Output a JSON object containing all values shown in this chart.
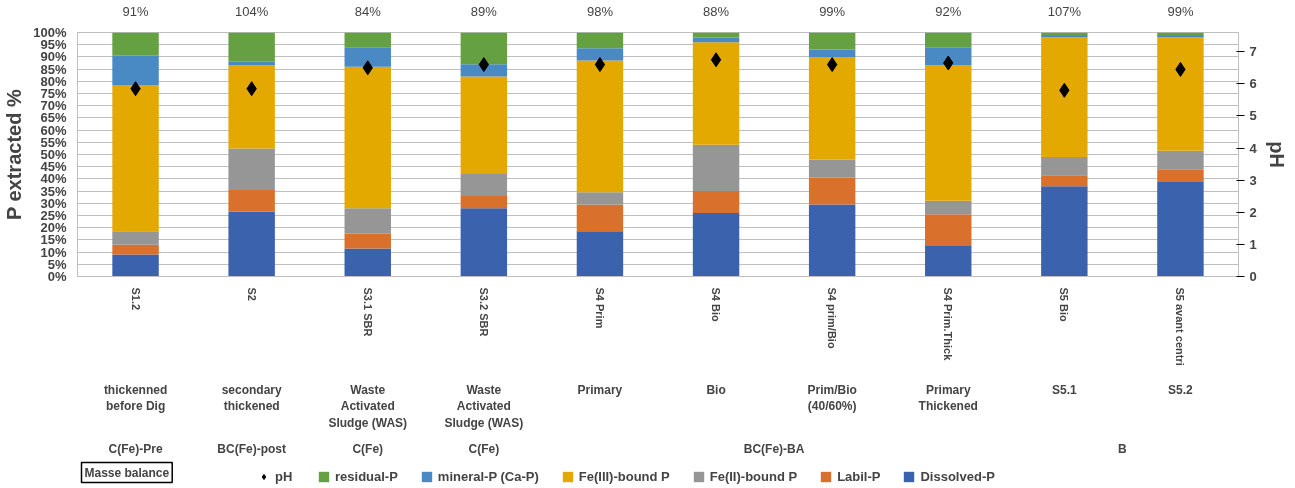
{
  "chart_data": {
    "type": "bar",
    "stacked": true,
    "ylabel": "P extracted %",
    "y2label": "pH",
    "categories": [
      "S1.2",
      "S2",
      "S3.1 SBR",
      "S3.2 SBR",
      "S4 Prim",
      "S4 Bio",
      "S4 prim/Bio",
      "S4 Prim.Thick",
      "S5 Bio",
      "S5 avant centri"
    ],
    "series": [
      {
        "name": "Dissolved-P",
        "color": "#3a62ad",
        "values": [
          9,
          26.5,
          11.5,
          28,
          18.5,
          26,
          29.5,
          12.5,
          37,
          39
        ]
      },
      {
        "name": "Labil-P",
        "color": "#d9702b",
        "values": [
          4,
          9,
          6,
          5,
          11,
          9,
          11,
          13,
          4.5,
          5
        ]
      },
      {
        "name": "Fe(II)-bound P",
        "color": "#969696",
        "values": [
          5.5,
          17,
          10.5,
          9,
          5,
          19,
          7.5,
          5.5,
          7.5,
          7.5
        ]
      },
      {
        "name": "Fe(III)-bound P",
        "color": "#e4a900",
        "values": [
          60,
          34,
          58,
          40,
          54,
          42,
          42,
          55.5,
          49,
          46.5
        ]
      },
      {
        "name": "mineral-P (Ca-P)",
        "color": "#4a8ac4",
        "values": [
          12,
          1.5,
          8,
          5,
          5,
          2,
          3,
          7.5,
          1,
          1
        ]
      },
      {
        "name": "residual-P",
        "color": "#65a043",
        "values": [
          9.5,
          12,
          6,
          13,
          6.5,
          2,
          7,
          6,
          1,
          1
        ]
      },
      {
        "name": "pH",
        "type": "scatter",
        "axis": "y2",
        "marker": "diamond",
        "color": "#000000",
        "values": [
          5.85,
          5.85,
          6.5,
          6.6,
          6.6,
          6.75,
          6.6,
          6.65,
          5.8,
          6.45
        ]
      }
    ],
    "ylim": [
      0,
      100
    ],
    "yticks": [
      {
        "value": 0,
        "label": "0%"
      },
      {
        "value": 5,
        "label": "5%"
      },
      {
        "value": 10,
        "label": "10%"
      },
      {
        "value": 15,
        "label": "15%"
      },
      {
        "value": 20,
        "label": "20%"
      },
      {
        "value": 25,
        "label": "25%"
      },
      {
        "value": 30,
        "label": "30%"
      },
      {
        "value": 35,
        "label": "35%"
      },
      {
        "value": 40,
        "label": "40%"
      },
      {
        "value": 45,
        "label": "45%"
      },
      {
        "value": 50,
        "label": "50%"
      },
      {
        "value": 55,
        "label": "55%"
      },
      {
        "value": 60,
        "label": "60%"
      },
      {
        "value": 65,
        "label": "65%"
      },
      {
        "value": 70,
        "label": "70%"
      },
      {
        "value": 75,
        "label": "75%"
      },
      {
        "value": 80,
        "label": "80%"
      },
      {
        "value": 85,
        "label": "85%"
      },
      {
        "value": 90,
        "label": "90%"
      },
      {
        "value": 95,
        "label": "95%"
      },
      {
        "value": 100,
        "label": "100%"
      }
    ],
    "y2lim": [
      0,
      7.6
    ],
    "y2ticks": [
      0,
      1,
      2,
      3,
      4,
      5,
      6,
      7
    ],
    "grid": "y",
    "legend": "bottom",
    "annotations": [
      "Masse balance",
      "91%",
      "104%",
      "84%",
      "89%",
      "98%",
      "88%",
      "99%",
      "92%",
      "107%",
      "99%",
      "thickenned before Dig",
      "secondary thickened",
      "Waste Activated Sludge (WAS)",
      "Waste Activated Sludge (WAS)",
      "Primary",
      "Bio",
      "Prim/Bio (40/60%)",
      "Primary Thickened",
      "S5.1",
      "S5.2",
      "C(Fe)-Pre",
      "BC(Fe)-post",
      "C(Fe)",
      "C(Fe)",
      "BC(Fe)-BA",
      "B"
    ]
  }
}
